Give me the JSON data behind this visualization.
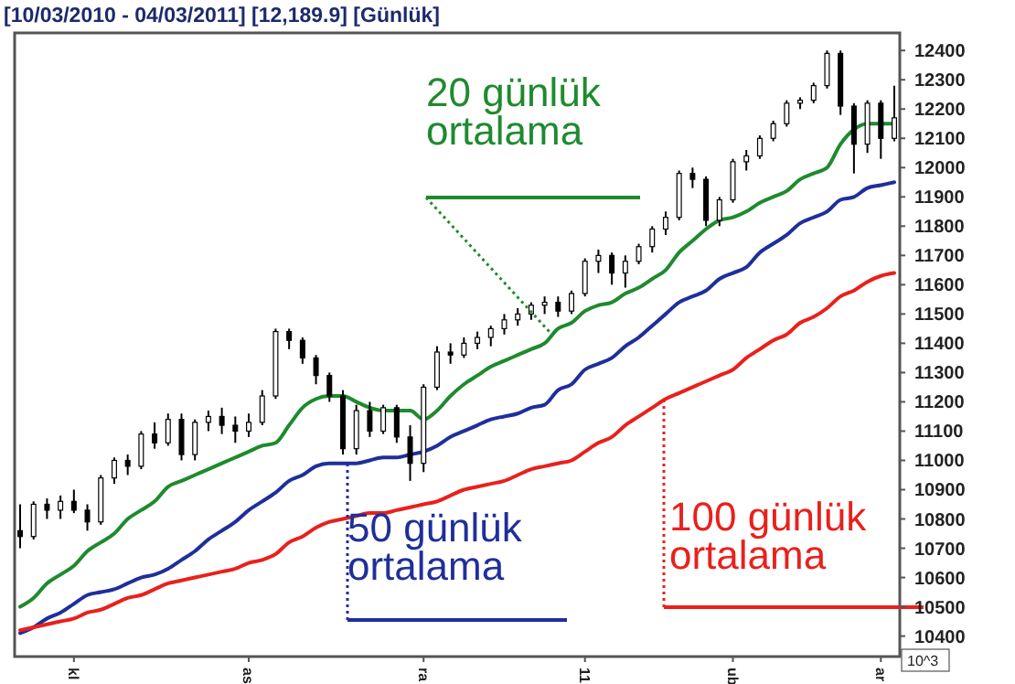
{
  "chart_data": {
    "type": "candlestick",
    "title": "[10/03/2010 - 04/03/2011]  [12,189.9]  [Günlük]",
    "categories": [
      null,
      null,
      null,
      null,
      "kl",
      null,
      null,
      null,
      null,
      null,
      null,
      null,
      null,
      null,
      null,
      null,
      null,
      "as",
      null,
      null,
      null,
      null,
      null,
      null,
      null,
      null,
      null,
      null,
      null,
      null,
      "ra",
      null,
      null,
      null,
      null,
      null,
      null,
      null,
      null,
      null,
      null,
      null,
      "11",
      null,
      null,
      null,
      null,
      null,
      null,
      null,
      null,
      null,
      null,
      "ub",
      null,
      null,
      null,
      null,
      null,
      null,
      null,
      null,
      null,
      null,
      "ar",
      null
    ],
    "ohlc": [
      [
        10760,
        10850,
        10700,
        10740
      ],
      [
        10740,
        10860,
        10730,
        10850
      ],
      [
        10850,
        10870,
        10800,
        10830
      ],
      [
        10830,
        10880,
        10800,
        10860
      ],
      [
        10860,
        10900,
        10820,
        10830
      ],
      [
        10830,
        10850,
        10760,
        10790
      ],
      [
        10790,
        10950,
        10780,
        10940
      ],
      [
        10940,
        11010,
        10920,
        11000
      ],
      [
        11000,
        11020,
        10950,
        10980
      ],
      [
        10980,
        11100,
        10970,
        11090
      ],
      [
        11090,
        11130,
        11040,
        11060
      ],
      [
        11060,
        11160,
        11050,
        11140
      ],
      [
        11140,
        11160,
        11000,
        11020
      ],
      [
        11020,
        11140,
        11000,
        11130
      ],
      [
        11130,
        11170,
        11100,
        11150
      ],
      [
        11150,
        11180,
        11090,
        11120
      ],
      [
        11120,
        11150,
        11060,
        11100
      ],
      [
        11100,
        11160,
        11080,
        11130
      ],
      [
        11130,
        11240,
        11120,
        11220
      ],
      [
        11220,
        11450,
        11210,
        11440
      ],
      [
        11440,
        11450,
        11380,
        11410
      ],
      [
        11410,
        11420,
        11330,
        11350
      ],
      [
        11350,
        11360,
        11260,
        11290
      ],
      [
        11290,
        11300,
        11200,
        11220
      ],
      [
        11220,
        11240,
        11020,
        11040
      ],
      [
        11040,
        11190,
        11020,
        11170
      ],
      [
        11170,
        11200,
        11080,
        11100
      ],
      [
        11100,
        11190,
        11090,
        11180
      ],
      [
        11180,
        11190,
        11060,
        11080
      ],
      [
        11080,
        11120,
        10930,
        10990
      ],
      [
        10990,
        11260,
        10960,
        11250
      ],
      [
        11250,
        11390,
        11240,
        11370
      ],
      [
        11370,
        11400,
        11330,
        11360
      ],
      [
        11360,
        11420,
        11350,
        11400
      ],
      [
        11400,
        11440,
        11380,
        11420
      ],
      [
        11420,
        11460,
        11390,
        11450
      ],
      [
        11450,
        11500,
        11430,
        11480
      ],
      [
        11480,
        11520,
        11460,
        11500
      ],
      [
        11500,
        11540,
        11480,
        11530
      ],
      [
        11530,
        11560,
        11500,
        11540
      ],
      [
        11540,
        11560,
        11490,
        11510
      ],
      [
        11510,
        11580,
        11500,
        11570
      ],
      [
        11570,
        11690,
        11560,
        11680
      ],
      [
        11680,
        11720,
        11640,
        11700
      ],
      [
        11700,
        11710,
        11600,
        11640
      ],
      [
        11640,
        11700,
        11590,
        11680
      ],
      [
        11680,
        11740,
        11670,
        11730
      ],
      [
        11730,
        11800,
        11710,
        11790
      ],
      [
        11790,
        11850,
        11770,
        11830
      ],
      [
        11830,
        11990,
        11820,
        11980
      ],
      [
        11980,
        12000,
        11930,
        11960
      ],
      [
        11960,
        11970,
        11800,
        11820
      ],
      [
        11820,
        11900,
        11800,
        11890
      ],
      [
        11890,
        12030,
        11880,
        12020
      ],
      [
        12020,
        12060,
        11990,
        12040
      ],
      [
        12040,
        12110,
        12030,
        12100
      ],
      [
        12100,
        12160,
        12090,
        12150
      ],
      [
        12150,
        12230,
        12140,
        12220
      ],
      [
        12220,
        12240,
        12200,
        12230
      ],
      [
        12230,
        12290,
        12220,
        12280
      ],
      [
        12280,
        12400,
        12270,
        12390
      ],
      [
        12390,
        12400,
        12180,
        12210
      ],
      [
        12210,
        12220,
        11980,
        12080
      ],
      [
        12080,
        12230,
        12050,
        12220
      ],
      [
        12220,
        12230,
        12030,
        12100
      ],
      [
        12100,
        12280,
        12090,
        12170
      ]
    ],
    "series": [
      {
        "type": "line",
        "name": "20 günlük ortalama",
        "color": "#1f8a2e",
        "values": [
          10500,
          10530,
          10580,
          10610,
          10640,
          10690,
          10720,
          10750,
          10800,
          10830,
          10860,
          10910,
          10930,
          10950,
          10970,
          10990,
          11010,
          11030,
          11050,
          11060,
          11120,
          11180,
          11210,
          11220,
          11220,
          11200,
          11180,
          11170,
          11170,
          11170,
          11140,
          11170,
          11220,
          11260,
          11290,
          11320,
          11340,
          11360,
          11380,
          11400,
          11450,
          11470,
          11510,
          11530,
          11540,
          11570,
          11590,
          11620,
          11650,
          11710,
          11750,
          11790,
          11820,
          11830,
          11850,
          11880,
          11900,
          11920,
          11960,
          11980,
          12000,
          12080,
          12130,
          12150,
          12150,
          12150
        ]
      },
      {
        "type": "line",
        "name": "50 günlük ortalama",
        "color": "#1f2f9a",
        "values": [
          10410,
          10430,
          10460,
          10480,
          10510,
          10540,
          10550,
          10560,
          10580,
          10600,
          10610,
          10630,
          10660,
          10690,
          10730,
          10760,
          10790,
          10830,
          10860,
          10890,
          10930,
          10950,
          10980,
          10990,
          10990,
          10990,
          11000,
          11010,
          11010,
          11020,
          11030,
          11050,
          11080,
          11100,
          11120,
          11140,
          11150,
          11160,
          11180,
          11190,
          11240,
          11260,
          11310,
          11330,
          11350,
          11390,
          11420,
          11460,
          11500,
          11540,
          11560,
          11580,
          11620,
          11640,
          11660,
          11710,
          11740,
          11770,
          11810,
          11830,
          11850,
          11890,
          11900,
          11930,
          11940,
          11950
        ]
      },
      {
        "type": "line",
        "name": "100 günlük ortalama",
        "color": "#e8211c",
        "values": [
          10420,
          10430,
          10440,
          10450,
          10460,
          10480,
          10490,
          10510,
          10530,
          10540,
          10560,
          10580,
          10590,
          10600,
          10610,
          10620,
          10630,
          10650,
          10660,
          10680,
          10720,
          10740,
          10770,
          10790,
          10800,
          10810,
          10820,
          10820,
          10830,
          10840,
          10850,
          10860,
          10880,
          10900,
          10910,
          10920,
          10930,
          10950,
          10970,
          10980,
          10990,
          11000,
          11030,
          11060,
          11080,
          11120,
          11150,
          11180,
          11210,
          11230,
          11250,
          11270,
          11290,
          11310,
          11350,
          11380,
          11410,
          11430,
          11470,
          11490,
          11520,
          11560,
          11580,
          11610,
          11630,
          11640
        ]
      }
    ],
    "ylim": [
      10330,
      12460
    ],
    "yticks": [
      10400,
      10500,
      10600,
      10700,
      10800,
      10900,
      11000,
      11100,
      11200,
      11300,
      11400,
      11500,
      11600,
      11700,
      11800,
      11900,
      12000,
      12100,
      12200,
      12300,
      12400
    ],
    "annotations": [
      "10^3"
    ]
  }
}
